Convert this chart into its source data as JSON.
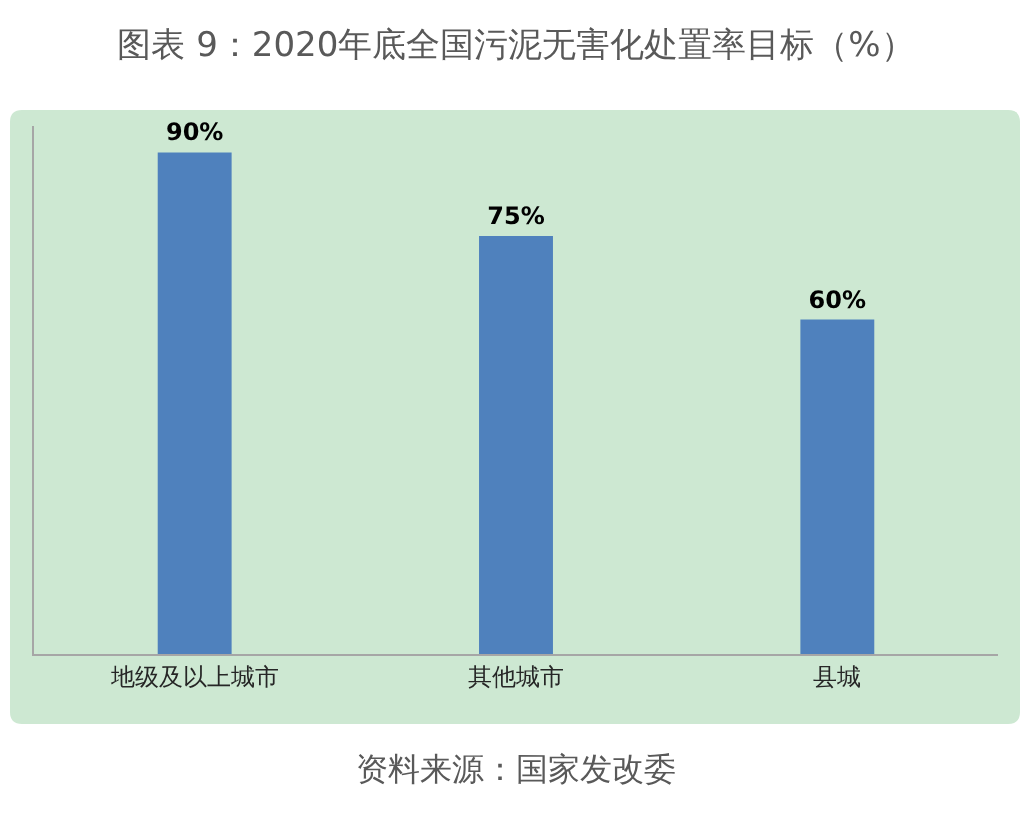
{
  "chart_data": {
    "type": "bar",
    "title": "图表 9：2020年底全国污泥无害化处置率目标（%）",
    "categories": [
      "地级及以上城市",
      "其他城市",
      "县城"
    ],
    "values": [
      90,
      75,
      60
    ],
    "color": "#4f81bd",
    "value_labels": [
      "90%",
      "75%",
      "60%"
    ],
    "annotations": [
      "资料来源：国家发改委"
    ],
    "tick_labels": "x",
    "grid": false
  }
}
